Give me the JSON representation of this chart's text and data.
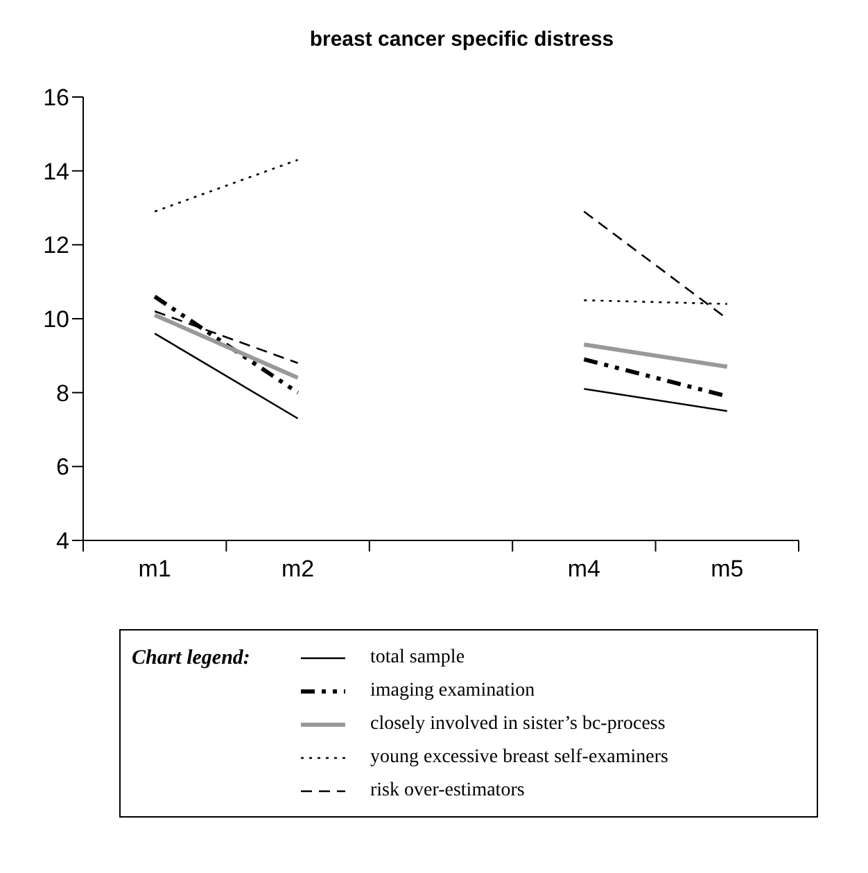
{
  "chart_data": {
    "type": "line",
    "title": "breast cancer specific distress",
    "legend_title": "Chart legend:",
    "categories": [
      "m1",
      "m2",
      null,
      "m4",
      "m5"
    ],
    "series": [
      {
        "name": "total sample",
        "color": "#000000",
        "line_style": "solid",
        "values": [
          9.6,
          7.3,
          null,
          8.1,
          7.5
        ]
      },
      {
        "name": "imaging examination",
        "color": "#000000",
        "line_style": "dashdot",
        "values": [
          10.6,
          8.0,
          null,
          8.9,
          7.9
        ]
      },
      {
        "name": "closely involved in sister’s bc-process",
        "color": "#999999",
        "line_style": "solid",
        "values": [
          10.1,
          8.4,
          null,
          9.3,
          8.7
        ]
      },
      {
        "name": "young excessive breast self-examiners",
        "color": "#000000",
        "line_style": "dotted",
        "values": [
          12.9,
          14.3,
          null,
          10.5,
          10.4
        ]
      },
      {
        "name": "risk over-estimators",
        "color": "#000000",
        "line_style": "dashed",
        "values": [
          10.2,
          8.8,
          null,
          12.9,
          10.0
        ]
      }
    ],
    "ylim": [
      4,
      16
    ],
    "yticks": [
      4,
      6,
      8,
      10,
      12,
      14,
      16
    ],
    "grid": false,
    "legend": "bottom",
    "marker": "none"
  }
}
